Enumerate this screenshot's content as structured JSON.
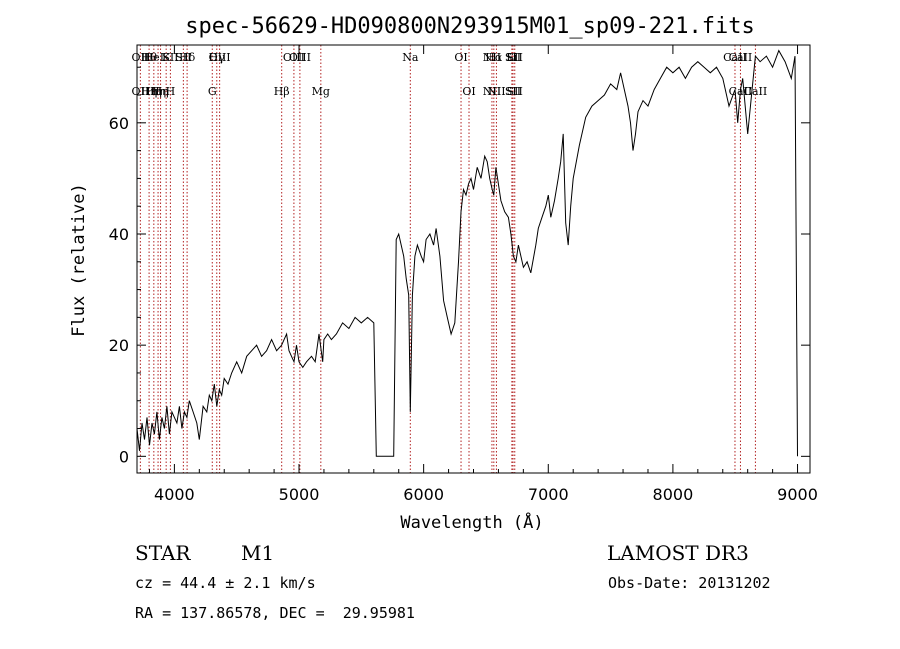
{
  "chart_data": {
    "type": "line",
    "title": "spec-56629-HD090800N293915M01_sp09-221.fits",
    "xlabel": "Wavelength (Å)",
    "ylabel": "Flux (relative)",
    "xlim": [
      3700,
      9100
    ],
    "ylim": [
      -3,
      74
    ],
    "x_ticks": [
      4000,
      5000,
      6000,
      7000,
      8000,
      9000
    ],
    "y_ticks": [
      0,
      20,
      40,
      60
    ],
    "grid": false,
    "line_color": "#000000",
    "marker_color": "#b22222",
    "series": [
      {
        "x": [
          3700,
          3720,
          3740,
          3760,
          3780,
          3800,
          3820,
          3840,
          3860,
          3880,
          3900,
          3920,
          3940,
          3960,
          3980,
          4000,
          4020,
          4040,
          4060,
          4080,
          4100,
          4120,
          4150,
          4180,
          4200,
          4230,
          4260,
          4280,
          4300,
          4320,
          4340,
          4360,
          4380,
          4400,
          4430,
          4460,
          4500,
          4540,
          4580,
          4620,
          4660,
          4700,
          4740,
          4780,
          4820,
          4860,
          4880,
          4900,
          4920,
          4940,
          4960,
          4980,
          5000,
          5030,
          5060,
          5100,
          5130,
          5160,
          5190,
          5200,
          5230,
          5260,
          5300,
          5350,
          5400,
          5450,
          5500,
          5550,
          5600,
          5620,
          5640,
          5660,
          5680,
          5700,
          5720,
          5740,
          5760,
          5780,
          5800,
          5820,
          5840,
          5860,
          5880,
          5893,
          5910,
          5930,
          5950,
          5980,
          6000,
          6020,
          6050,
          6080,
          6100,
          6130,
          6160,
          6190,
          6220,
          6250,
          6280,
          6300,
          6320,
          6340,
          6360,
          6380,
          6400,
          6430,
          6460,
          6490,
          6510,
          6530,
          6550,
          6563,
          6580,
          6600,
          6620,
          6650,
          6680,
          6700,
          6720,
          6740,
          6760,
          6800,
          6830,
          6860,
          6900,
          6920,
          6950,
          6980,
          7000,
          7020,
          7050,
          7080,
          7100,
          7120,
          7140,
          7160,
          7180,
          7200,
          7250,
          7300,
          7350,
          7400,
          7450,
          7500,
          7550,
          7580,
          7610,
          7640,
          7660,
          7680,
          7700,
          7720,
          7760,
          7800,
          7850,
          7900,
          7950,
          8000,
          8050,
          8100,
          8150,
          8200,
          8250,
          8300,
          8350,
          8400,
          8450,
          8498,
          8520,
          8542,
          8560,
          8600,
          8662,
          8700,
          8750,
          8800,
          8850,
          8900,
          8950,
          8980,
          9000
        ],
        "y": [
          5,
          1,
          6,
          3,
          7,
          2,
          6,
          4,
          8,
          3,
          7,
          5,
          9,
          4,
          8,
          7,
          6,
          9,
          5,
          8,
          7,
          10,
          8,
          6,
          3,
          9,
          8,
          11,
          10,
          13,
          9,
          12,
          11,
          14,
          13,
          15,
          17,
          15,
          18,
          19,
          20,
          18,
          19,
          21,
          19,
          20,
          21,
          22,
          19,
          18,
          17,
          20,
          17,
          16,
          17,
          18,
          17,
          22,
          17,
          21,
          22,
          21,
          22,
          24,
          23,
          25,
          24,
          25,
          24,
          0,
          0,
          0,
          0,
          0,
          0,
          0,
          0,
          39,
          40,
          38,
          36,
          32,
          29,
          8,
          29,
          36,
          38,
          36,
          35,
          39,
          40,
          38,
          41,
          36,
          28,
          25,
          22,
          24,
          35,
          44,
          48,
          47,
          49,
          50,
          48,
          52,
          50,
          54,
          53,
          50,
          48,
          47,
          52,
          49,
          46,
          44,
          43,
          40,
          36,
          35,
          38,
          34,
          35,
          33,
          38,
          41,
          43,
          45,
          47,
          43,
          46,
          50,
          53,
          58,
          42,
          38,
          45,
          50,
          56,
          61,
          63,
          64,
          65,
          67,
          66,
          69,
          66,
          63,
          60,
          55,
          58,
          62,
          64,
          63,
          66,
          68,
          70,
          69,
          70,
          68,
          70,
          71,
          70,
          69,
          70,
          68,
          63,
          66,
          60,
          66,
          68,
          58,
          72,
          71,
          72,
          70,
          73,
          71,
          68,
          72,
          0
        ]
      }
    ],
    "lines": [
      {
        "x": 3727,
        "upper": "OII",
        "lower": "OII"
      },
      {
        "x": 3797,
        "upper": "Hθ",
        "lower": "Hη"
      },
      {
        "x": 3835,
        "upper": "HeI",
        "lower": "Hη"
      },
      {
        "x": 3869,
        "upper": "",
        "lower": "Hη"
      },
      {
        "x": 3889,
        "upper": "",
        "lower": "Hη"
      },
      {
        "x": 3934,
        "upper": "K",
        "lower": ""
      },
      {
        "x": 3968,
        "upper": "SII",
        "lower": "H"
      },
      {
        "x": 4102,
        "upper": "Hδ",
        "lower": ""
      },
      {
        "x": 4072,
        "upper": "SII",
        "lower": ""
      },
      {
        "x": 4304,
        "upper": "",
        "lower": "G"
      },
      {
        "x": 4340,
        "upper": "Hγ",
        "lower": ""
      },
      {
        "x": 4363,
        "upper": "OIII",
        "lower": ""
      },
      {
        "x": 4861,
        "upper": "",
        "lower": "Hβ"
      },
      {
        "x": 4959,
        "upper": "OIII",
        "lower": ""
      },
      {
        "x": 5007,
        "upper": "OIII",
        "lower": ""
      },
      {
        "x": 5175,
        "upper": "",
        "lower": "Mg"
      },
      {
        "x": 5893,
        "upper": "Na",
        "lower": ""
      },
      {
        "x": 6300,
        "upper": "OI",
        "lower": ""
      },
      {
        "x": 6364,
        "upper": "",
        "lower": "OI"
      },
      {
        "x": 6548,
        "upper": "NII",
        "lower": "NII"
      },
      {
        "x": 6563,
        "upper": "Hα",
        "lower": ""
      },
      {
        "x": 6584,
        "upper": "",
        "lower": "NII"
      },
      {
        "x": 6708,
        "upper": "Li",
        "lower": ""
      },
      {
        "x": 6717,
        "upper": "SII",
        "lower": "SII"
      },
      {
        "x": 6731,
        "upper": "SII",
        "lower": "SII"
      },
      {
        "x": 8498,
        "upper": "CaII",
        "lower": ""
      },
      {
        "x": 8542,
        "upper": "CaII",
        "lower": "CaII"
      },
      {
        "x": 8662,
        "upper": "",
        "lower": "CaII"
      }
    ]
  },
  "info": {
    "object_class": "STAR",
    "subclass": "M1",
    "survey": "LAMOST DR3",
    "redshift": "cz = 44.4 ± 2.1 km/s",
    "obs_date": "Obs-Date: 20131202",
    "coords": "RA = 137.86578, DEC =  29.95981"
  }
}
